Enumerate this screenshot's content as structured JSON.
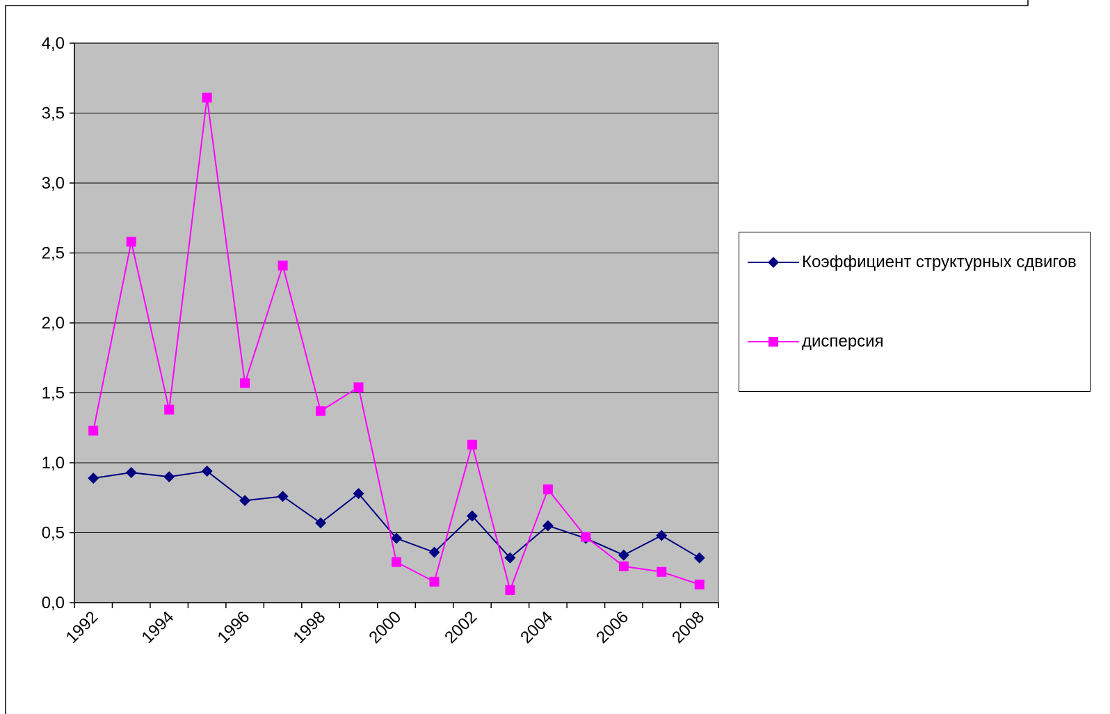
{
  "chart_data": {
    "type": "line",
    "categories": [
      "1992",
      null,
      "1994",
      null,
      "1996",
      null,
      "1998",
      null,
      "2000",
      null,
      "2002",
      null,
      "2004",
      null,
      "2006",
      null,
      "2008"
    ],
    "series": [
      {
        "name": "Коэффициент структурных сдвигов",
        "color": "#000080",
        "marker": "diamond",
        "values": [
          0.89,
          0.93,
          0.9,
          0.94,
          0.73,
          0.76,
          0.57,
          0.78,
          0.46,
          0.36,
          0.62,
          0.32,
          0.55,
          0.46,
          0.34,
          0.48,
          0.32
        ]
      },
      {
        "name": "дисперсия",
        "color": "#ff00ff",
        "marker": "square",
        "values": [
          1.23,
          2.58,
          1.38,
          3.61,
          1.57,
          2.41,
          1.37,
          1.54,
          0.29,
          0.15,
          1.13,
          0.09,
          0.81,
          0.47,
          0.26,
          0.22,
          0.13
        ]
      }
    ],
    "ylim": [
      0,
      4
    ],
    "yticks": [
      {
        "value": 0,
        "label": "0,0"
      },
      {
        "value": 0.5,
        "label": "0,5"
      },
      {
        "value": 1,
        "label": "1,0"
      },
      {
        "value": 1.5,
        "label": "1,5"
      },
      {
        "value": 2,
        "label": "2,0"
      },
      {
        "value": 2.5,
        "label": "2,5"
      },
      {
        "value": 3,
        "label": "3,0"
      },
      {
        "value": 3.5,
        "label": "3,5"
      },
      {
        "value": 4,
        "label": "4,0"
      }
    ],
    "grid": true,
    "legend": "right"
  }
}
